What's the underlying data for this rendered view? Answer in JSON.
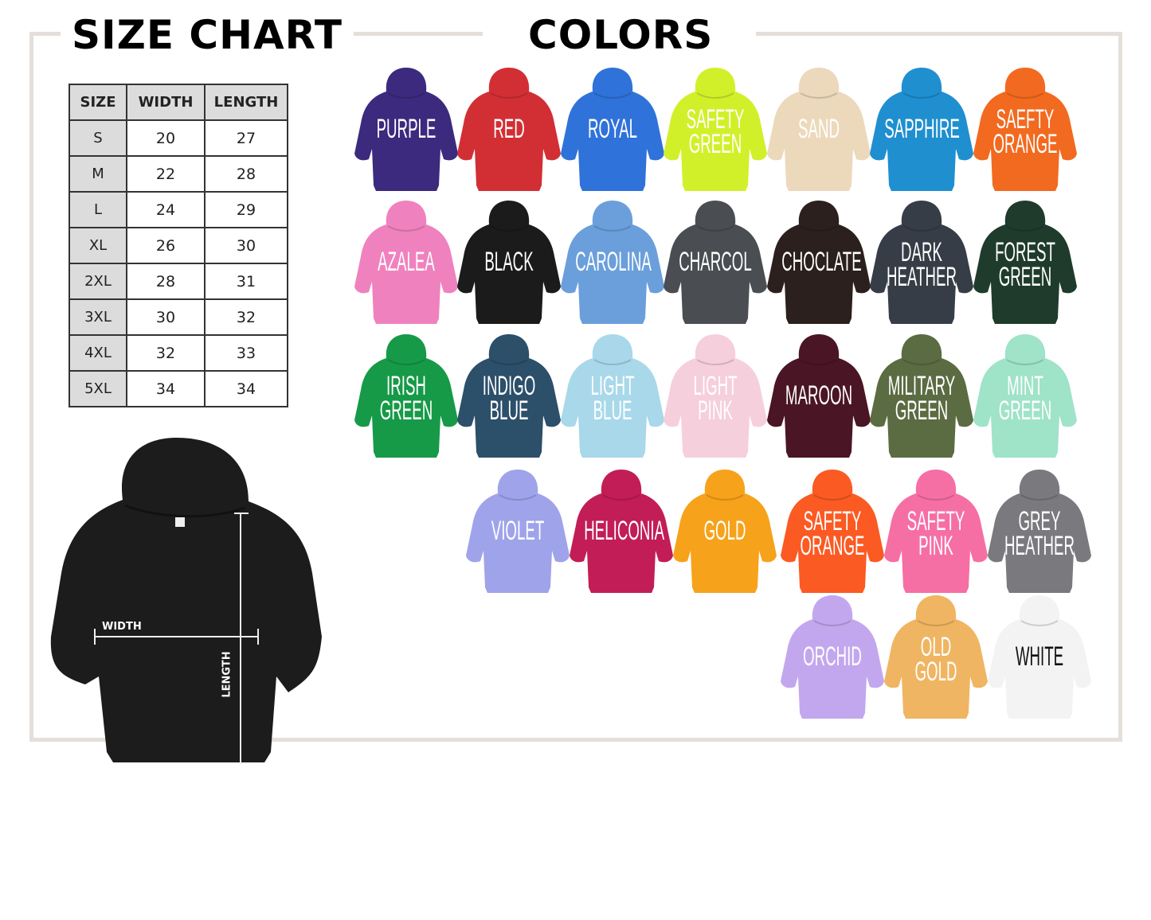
{
  "headings": {
    "size_chart": "SIZE CHART",
    "colors": "COLORS"
  },
  "size_table": {
    "headers": [
      "SIZE",
      "WIDTH",
      "LENGTH"
    ],
    "rows": [
      [
        "S",
        "20",
        "27"
      ],
      [
        "M",
        "22",
        "28"
      ],
      [
        "L",
        "24",
        "29"
      ],
      [
        "XL",
        "26",
        "30"
      ],
      [
        "2XL",
        "28",
        "31"
      ],
      [
        "3XL",
        "30",
        "32"
      ],
      [
        "4XL",
        "32",
        "33"
      ],
      [
        "5XL",
        "34",
        "34"
      ]
    ]
  },
  "measure_labels": {
    "width": "WIDTH",
    "length": "LENGTH"
  },
  "colors": [
    {
      "lines": [
        "PURPLE"
      ],
      "hex": "#3b2a7e"
    },
    {
      "lines": [
        "RED"
      ],
      "hex": "#d22f35"
    },
    {
      "lines": [
        "ROYAL"
      ],
      "hex": "#2f72d9"
    },
    {
      "lines": [
        "SAFETY",
        "GREEN"
      ],
      "hex": "#d2f02a"
    },
    {
      "lines": [
        "SAND"
      ],
      "hex": "#ecd9bc"
    },
    {
      "lines": [
        "SAPPHIRE"
      ],
      "hex": "#1f8fd0"
    },
    {
      "lines": [
        "SAEFTY",
        "ORANGE"
      ],
      "hex": "#f26a1f"
    },
    {
      "lines": [
        "AZALEA"
      ],
      "hex": "#ef82be"
    },
    {
      "lines": [
        "BLACK"
      ],
      "hex": "#1b1b1b"
    },
    {
      "lines": [
        "CAROLINA"
      ],
      "hex": "#6a9fdb"
    },
    {
      "lines": [
        "CHARCOL"
      ],
      "hex": "#4a4d52"
    },
    {
      "lines": [
        "CHOCLATE"
      ],
      "hex": "#2b201d"
    },
    {
      "lines": [
        "DARK",
        "HEATHER"
      ],
      "hex": "#363d47"
    },
    {
      "lines": [
        "FOREST",
        "GREEN"
      ],
      "hex": "#1f3b2c"
    },
    {
      "lines": [
        "IRISH",
        "GREEN"
      ],
      "hex": "#169a47"
    },
    {
      "lines": [
        "INDIGO",
        "BLUE"
      ],
      "hex": "#2c4f6a"
    },
    {
      "lines": [
        "LIGHT",
        "BLUE"
      ],
      "hex": "#a8d8ea"
    },
    {
      "lines": [
        "LIGHT",
        "PINK"
      ],
      "hex": "#f6cfdc"
    },
    {
      "lines": [
        "MAROON"
      ],
      "hex": "#4a1525"
    },
    {
      "lines": [
        "MILITARY",
        "GREEN"
      ],
      "hex": "#5b6b42"
    },
    {
      "lines": [
        "MINT",
        "GREEN"
      ],
      "hex": "#9fe3c9"
    },
    {
      "lines": [
        "VIOLET"
      ],
      "hex": "#9fa3ea"
    },
    {
      "lines": [
        "HELICONIA"
      ],
      "hex": "#c21d56"
    },
    {
      "lines": [
        "GOLD"
      ],
      "hex": "#f7a21b"
    },
    {
      "lines": [
        "SAFETY",
        "ORANGE"
      ],
      "hex": "#fb5a23"
    },
    {
      "lines": [
        "SAFETY",
        "PINK"
      ],
      "hex": "#f56fa5"
    },
    {
      "lines": [
        "GREY",
        "HEATHER"
      ],
      "hex": "#7a7a7e"
    },
    {
      "lines": [
        "ORCHID"
      ],
      "hex": "#c3a7ee"
    },
    {
      "lines": [
        "OLD",
        "GOLD"
      ],
      "hex": "#f0b562"
    },
    {
      "lines": [
        "WHITE"
      ],
      "hex": "#f3f3f3",
      "text": "#111111"
    }
  ],
  "frame_color": "#e4dfda"
}
